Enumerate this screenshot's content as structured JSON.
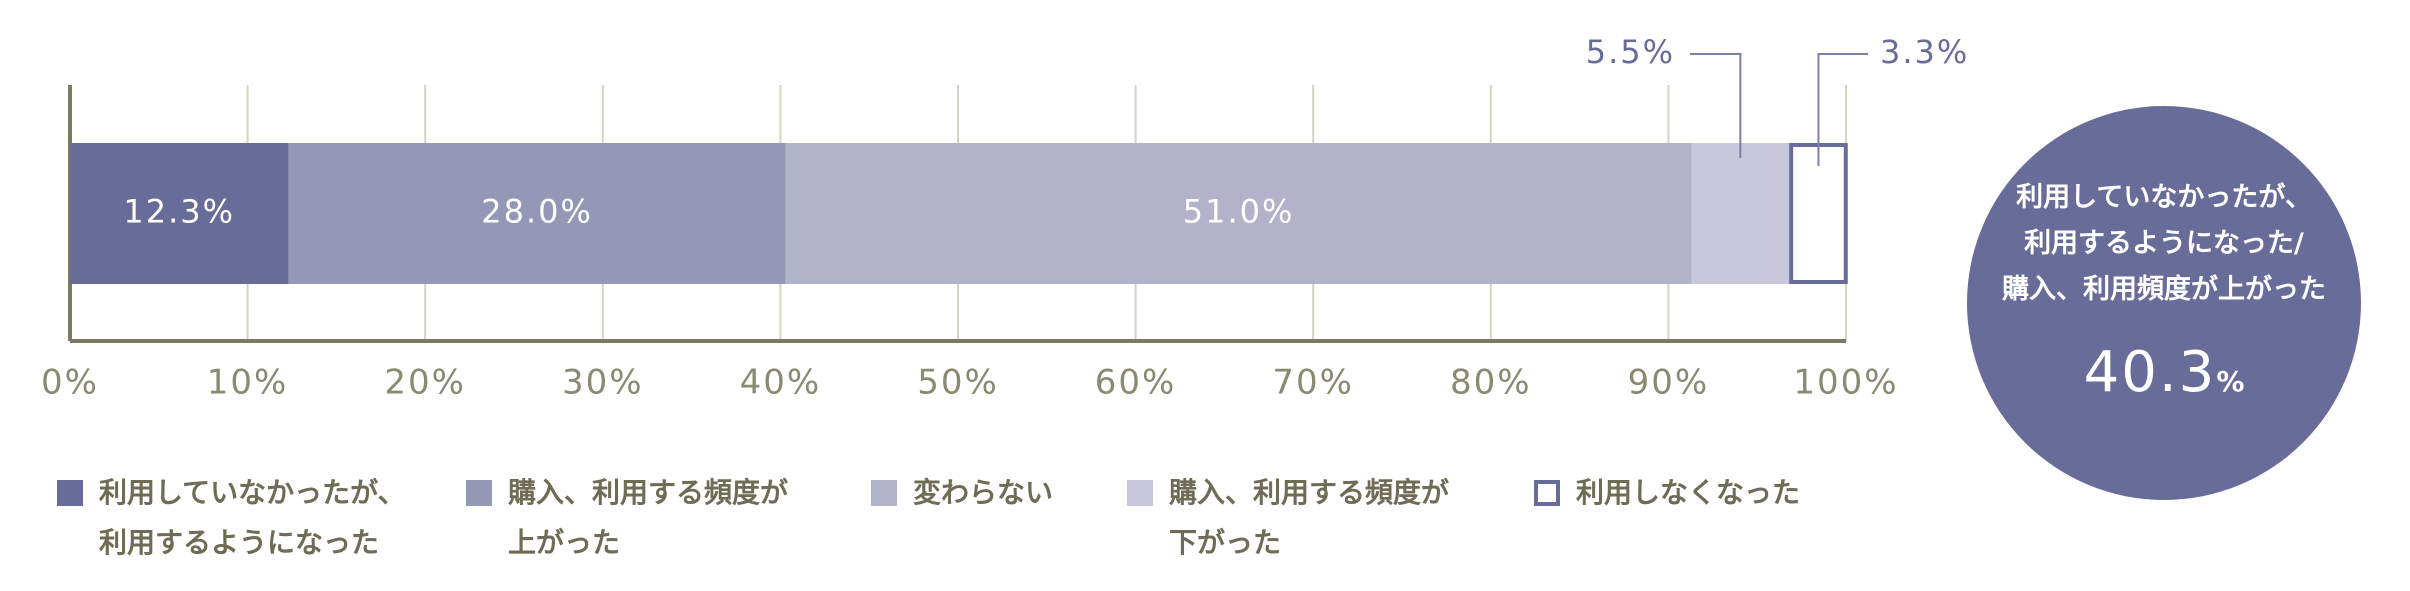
{
  "chart_data": {
    "type": "stacked-bar-horizontal",
    "series": [
      {
        "name": "利用していなかったが、\n利用するようになった",
        "color": "#686c99",
        "values": [
          12.3
        ],
        "value_labels": [
          "12.3%"
        ]
      },
      {
        "name": "購入、利用する頻度が\n上がった",
        "color": "#9597b7",
        "values": [
          28.0
        ],
        "value_labels": [
          "28.0%"
        ]
      },
      {
        "name": "変わらない",
        "color": "#b3b2cb",
        "values": [
          51.0
        ],
        "value_labels": [
          "51.0%"
        ]
      },
      {
        "name": "購入、利用する頻度が\n下がった",
        "color": "#c9c7dc",
        "values": [
          5.5
        ],
        "value_labels": [
          "5.5%"
        ]
      },
      {
        "name": "利用しなくなった",
        "color": "#ffffff",
        "values": [
          3.3
        ],
        "value_labels": [
          "3.3%"
        ]
      }
    ],
    "xlim": [
      0,
      100
    ],
    "xticks": [
      {
        "value": 0,
        "label": "0%"
      },
      {
        "value": 10,
        "label": "10%"
      },
      {
        "value": 20,
        "label": "20%"
      },
      {
        "value": 30,
        "label": "30%"
      },
      {
        "value": 40,
        "label": "40%"
      },
      {
        "value": 50,
        "label": "50%"
      },
      {
        "value": 60,
        "label": "60%"
      },
      {
        "value": 70,
        "label": "70%"
      },
      {
        "value": 80,
        "label": "80%"
      },
      {
        "value": 90,
        "label": "90%"
      },
      {
        "value": 100,
        "label": "100%"
      }
    ],
    "grid": true,
    "summary": {
      "label": "利用していなかったが、\n利用するようになった/\n購入、利用頻度が上がった",
      "value": "40.3",
      "unit": "%"
    }
  }
}
